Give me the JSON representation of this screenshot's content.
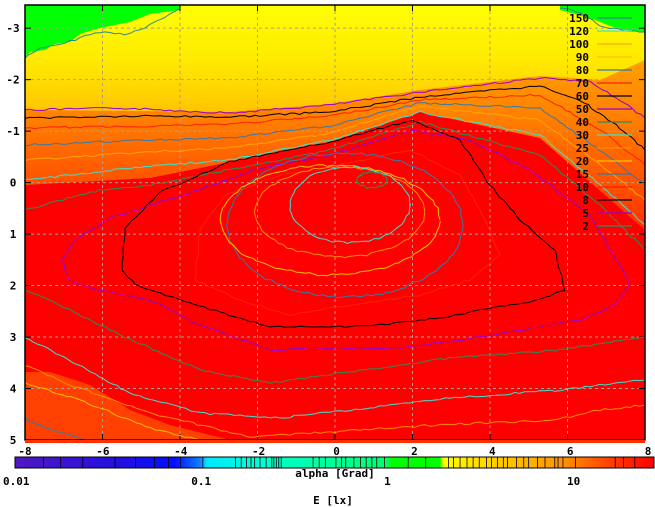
{
  "chart_data": {
    "type": "heatmap",
    "title": "",
    "xlabel": "alpha [Grad]",
    "ylabel": "",
    "xlim": [
      -8,
      8
    ],
    "ylim": [
      -3.45,
      5
    ],
    "y_inverted": true,
    "grid": true,
    "x_ticks": [
      "-8",
      "-6",
      "-4",
      "-2",
      "0",
      "2",
      "4",
      "6",
      "8"
    ],
    "x_tick_values": [
      -8,
      -6,
      -4,
      -2,
      0,
      2,
      4,
      6,
      8
    ],
    "y_ticks": [
      "-3",
      "-2",
      "-1",
      "0",
      "1",
      "2",
      "3",
      "4",
      "5"
    ],
    "y_tick_values": [
      -3,
      -2,
      -1,
      0,
      1,
      2,
      3,
      4,
      5
    ],
    "colorbar": {
      "label": "E [lx]",
      "scale": "log",
      "range": [
        0.01,
        27
      ],
      "ticks": [
        "0.01",
        "0.1",
        "1",
        "10"
      ],
      "tick_values": [
        0.01,
        0.1,
        1,
        10
      ]
    },
    "contour_legend": {
      "placement": "top-right",
      "levels": [
        {
          "label": "150",
          "color": "#2e8b8b"
        },
        {
          "label": "120",
          "color": "#40e0e0"
        },
        {
          "label": "100",
          "color": "#ffa500"
        },
        {
          "label": "90",
          "color": "#ffc000"
        },
        {
          "label": "80",
          "color": "#3878a8"
        },
        {
          "label": "70",
          "color": "#ff2000"
        },
        {
          "label": "60",
          "color": "#000000"
        },
        {
          "label": "50",
          "color": "#9400d3"
        },
        {
          "label": "40",
          "color": "#2e8b57"
        },
        {
          "label": "30",
          "color": "#40e0d0"
        },
        {
          "label": "25",
          "color": "#ff8c00"
        },
        {
          "label": "20",
          "color": "#ffc000"
        },
        {
          "label": "15",
          "color": "#3878a8"
        },
        {
          "label": "10",
          "color": "#ff2000"
        },
        {
          "label": "8",
          "color": "#000000"
        },
        {
          "label": "5",
          "color": "#9400d3"
        },
        {
          "label": "2",
          "color": "#2e8b57"
        }
      ]
    },
    "colors": {
      "max": "#ff0000",
      "mid": "#ffa000",
      "low": "#ffff00",
      "min": "#00ff00"
    }
  }
}
